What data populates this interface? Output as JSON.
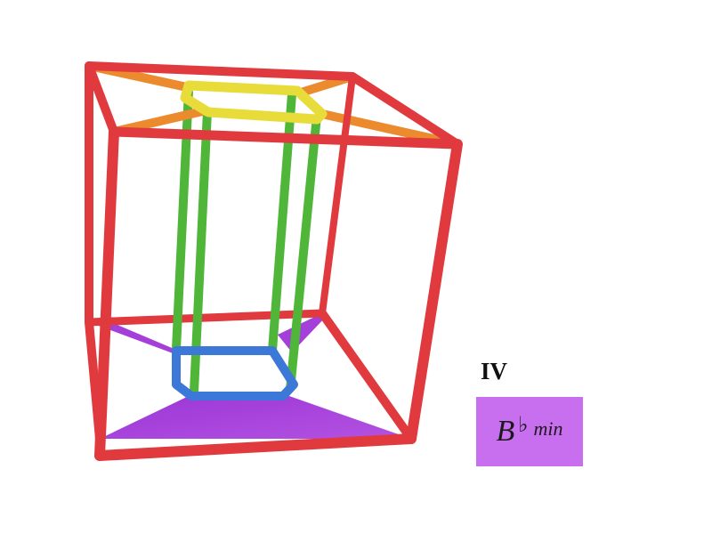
{
  "chord_label": {
    "numeral": "IV",
    "root": "B",
    "accidental": "♭",
    "quality": "min"
  },
  "colors": {
    "outer_cube": "#e03a3e",
    "inner_top": "#e8dc3a",
    "top_connectors": "#ec8a2e",
    "vertical_struts": "#4fb63a",
    "inner_bottom": "#3b78d8",
    "bottom_faces": "#a844d8",
    "chord_box": "#c86ff0"
  },
  "icons": {
    "figure": "tesseract-wireframe"
  }
}
